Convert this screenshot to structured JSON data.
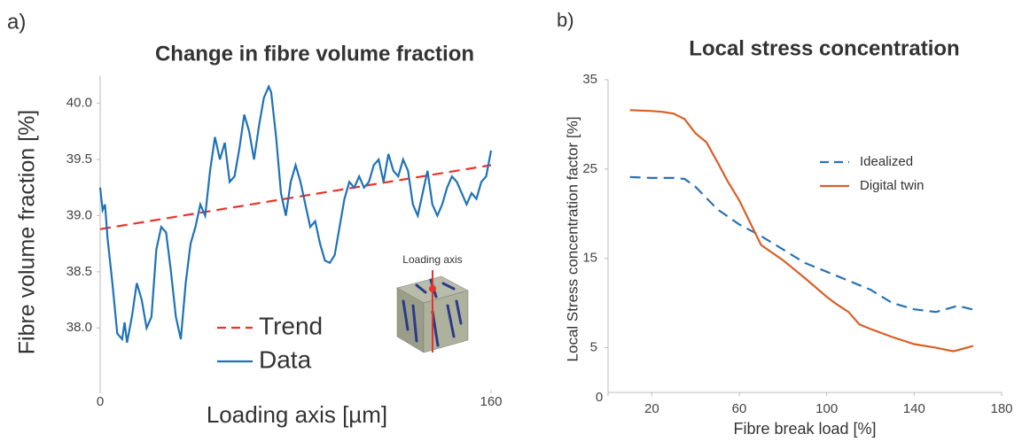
{
  "chart_data": [
    {
      "type": "line",
      "panel_label": "a)",
      "title": "Change in fibre volume fraction",
      "xlabel": "Loading axis [µm]",
      "ylabel": "Fibre volume fraction [%]",
      "xlim": [
        0,
        160
      ],
      "xticks": [
        0,
        160
      ],
      "ylim": [
        37.45,
        40.25
      ],
      "yticks": [
        {
          "value": 38,
          "label": "38.0"
        },
        38.5,
        {
          "value": 39,
          "label": "39.0"
        },
        39.5,
        {
          "value": 40,
          "label": "40.0"
        }
      ],
      "legend": "lower-center",
      "annotation": "Loading axis",
      "series": [
        {
          "name": "Trend",
          "color": "#e8332a",
          "dash": true,
          "x": [
            0,
            160
          ],
          "values": [
            38.88,
            39.45
          ]
        },
        {
          "name": "Data",
          "color": "#1f72b8",
          "dash": false,
          "x": [
            0,
            1,
            2,
            3,
            5,
            7,
            9,
            10,
            11,
            13,
            15,
            17,
            19,
            21,
            23,
            25,
            27,
            29,
            31,
            33,
            35,
            37,
            39,
            41,
            43,
            45,
            47,
            49,
            51,
            53,
            55,
            57,
            59,
            61,
            63,
            65,
            67,
            69,
            70,
            72,
            74,
            76,
            78,
            80,
            82,
            84,
            86,
            88,
            90,
            92,
            94,
            96,
            98,
            100,
            102,
            104,
            106,
            108,
            110,
            112,
            114,
            116,
            118,
            120,
            122,
            124,
            126,
            128,
            130,
            132,
            134,
            136,
            138,
            140,
            142,
            144,
            146,
            148,
            150,
            152,
            154,
            156,
            158,
            160
          ],
          "values": [
            39.25,
            39.05,
            39.1,
            38.8,
            38.4,
            37.95,
            37.9,
            38.05,
            37.87,
            38.1,
            38.4,
            38.25,
            38.0,
            38.1,
            38.7,
            38.9,
            38.85,
            38.5,
            38.1,
            37.9,
            38.4,
            38.75,
            38.9,
            39.1,
            39.0,
            39.4,
            39.7,
            39.5,
            39.65,
            39.3,
            39.35,
            39.6,
            39.9,
            39.75,
            39.5,
            39.8,
            40.05,
            40.15,
            40.1,
            39.7,
            39.2,
            39.0,
            39.3,
            39.45,
            39.3,
            39.1,
            38.9,
            38.95,
            38.75,
            38.6,
            38.58,
            38.65,
            38.9,
            39.15,
            39.3,
            39.25,
            39.35,
            39.25,
            39.3,
            39.45,
            39.5,
            39.3,
            39.55,
            39.4,
            39.35,
            39.5,
            39.4,
            39.1,
            39.0,
            39.2,
            39.4,
            39.1,
            39.0,
            39.1,
            39.25,
            39.35,
            39.3,
            39.2,
            39.1,
            39.2,
            39.15,
            39.3,
            39.35,
            39.58
          ]
        }
      ]
    },
    {
      "type": "line",
      "panel_label": "b)",
      "title": "Local stress concentration",
      "xlabel": "Fibre break load [%]",
      "ylabel": "Local Stress concentration factor [%]",
      "xlim": [
        0,
        180
      ],
      "xticks": [
        0,
        20,
        60,
        100,
        140,
        180
      ],
      "ylim": [
        0,
        35
      ],
      "yticks": [
        5,
        15,
        25,
        35
      ],
      "legend": "upper-right",
      "series": [
        {
          "name": "Idealized",
          "color": "#2a72b5",
          "dash": true,
          "x": [
            10,
            20,
            30,
            35,
            40,
            50,
            60,
            70,
            80,
            90,
            100,
            110,
            120,
            130,
            140,
            150,
            160,
            168
          ],
          "values": [
            24.1,
            24.0,
            24.0,
            23.9,
            23.0,
            20.5,
            18.8,
            17.5,
            16.0,
            14.5,
            13.5,
            12.5,
            11.5,
            10.0,
            9.3,
            9.0,
            9.7,
            9.2
          ]
        },
        {
          "name": "Digital twin",
          "color": "#d95f26",
          "dash": false,
          "x": [
            10,
            20,
            25,
            30,
            35,
            40,
            45,
            50,
            55,
            60,
            65,
            70,
            80,
            90,
            100,
            105,
            110,
            115,
            120,
            130,
            140,
            150,
            158,
            167
          ],
          "values": [
            31.6,
            31.5,
            31.4,
            31.2,
            30.6,
            29.0,
            28.0,
            25.8,
            23.5,
            21.5,
            19.0,
            16.5,
            14.8,
            12.8,
            10.7,
            9.8,
            9.0,
            7.6,
            7.1,
            6.2,
            5.4,
            5.0,
            4.6,
            5.2
          ]
        }
      ]
    }
  ]
}
